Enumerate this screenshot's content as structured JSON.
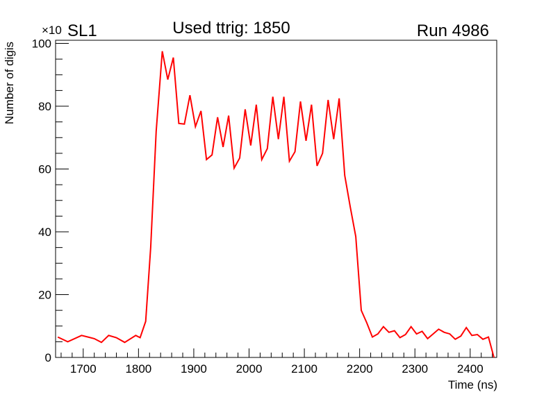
{
  "chart_data": {
    "type": "line",
    "title": "Used ttrig: 1850",
    "left_label": "SL1",
    "right_label": "Run 4986",
    "xlabel": "Time (ns)",
    "ylabel": "Number of digis",
    "y_exponent_label": "×10",
    "xlim": [
      1650,
      2448
    ],
    "ylim": [
      0,
      101
    ],
    "x_ticks": [
      1700,
      1800,
      1900,
      2000,
      2100,
      2200,
      2300,
      2400
    ],
    "y_ticks": [
      0,
      20,
      40,
      60,
      80,
      100
    ],
    "grid": false,
    "line_color": "#ff0000",
    "series": [
      {
        "name": "digis",
        "x": [
          1654,
          1672,
          1697,
          1720,
          1733,
          1746,
          1760,
          1775,
          1795,
          1803,
          1813,
          1822,
          1832,
          1843,
          1853,
          1863,
          1873,
          1883,
          1893,
          1903,
          1913,
          1923,
          1933,
          1943,
          1953,
          1963,
          1973,
          1983,
          1993,
          2003,
          2013,
          2023,
          2033,
          2043,
          2053,
          2063,
          2073,
          2083,
          2093,
          2103,
          2113,
          2123,
          2133,
          2143,
          2153,
          2163,
          2173,
          2183,
          2193,
          2203,
          2213,
          2223,
          2233,
          2243,
          2253,
          2263,
          2273,
          2283,
          2293,
          2303,
          2313,
          2323,
          2333,
          2343,
          2353,
          2363,
          2373,
          2383,
          2393,
          2403,
          2413,
          2423,
          2433,
          2443
        ],
        "y": [
          6.5,
          5,
          7,
          6,
          4.8,
          7,
          6.3,
          4.8,
          7,
          6.3,
          11.5,
          35,
          72,
          97.5,
          88.5,
          95.5,
          74.5,
          74.3,
          83.5,
          73.5,
          78.5,
          63,
          64.5,
          76.5,
          67,
          77,
          60.3,
          63.5,
          79,
          67.5,
          80.5,
          63,
          66.5,
          83,
          69.5,
          83,
          62.5,
          65.5,
          81.5,
          69,
          80.5,
          61,
          65,
          82,
          69.5,
          82.5,
          58,
          48,
          38.5,
          15,
          11,
          6.5,
          7.5,
          9.8,
          8,
          8.5,
          6.3,
          7.3,
          9.8,
          7.5,
          8.3,
          6,
          7.5,
          9,
          8,
          7.5,
          5.8,
          6.8,
          9.5,
          7,
          7.3,
          5.8,
          6.5,
          0
        ]
      }
    ]
  }
}
